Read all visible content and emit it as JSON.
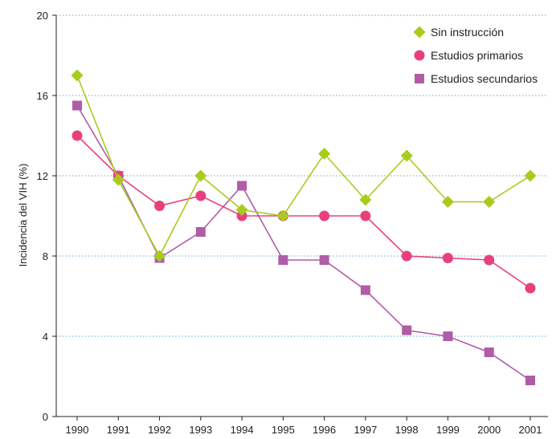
{
  "chart_data": {
    "type": "line",
    "x": [
      "1990",
      "1991",
      "1992",
      "1993",
      "1994",
      "1995",
      "1996",
      "1997",
      "1998",
      "1999",
      "2000",
      "2001"
    ],
    "ylabel": "Incidencia del VIH (%)",
    "ylim": [
      0,
      20
    ],
    "yticks": [
      "0",
      "4",
      "8",
      "12",
      "16",
      "20"
    ],
    "grid": "horizontal dotted",
    "legend_position": "top-right",
    "series": [
      {
        "name": "Sin instrucción",
        "color": "#a8cc1c",
        "marker": "diamond",
        "values": [
          17.0,
          11.8,
          8.0,
          12.0,
          10.3,
          10.0,
          13.1,
          10.8,
          13.0,
          10.7,
          10.7,
          12.0
        ]
      },
      {
        "name": "Estudios primarios",
        "color": "#e8407e",
        "marker": "circle",
        "values": [
          14.0,
          12.0,
          10.5,
          11.0,
          10.0,
          10.0,
          10.0,
          10.0,
          8.0,
          7.9,
          7.8,
          6.4
        ]
      },
      {
        "name": "Estudios secundarios",
        "color": "#b05ca6",
        "marker": "square",
        "values": [
          15.5,
          12.0,
          7.9,
          9.2,
          11.5,
          7.8,
          7.8,
          6.3,
          4.3,
          4.0,
          3.2,
          1.8
        ]
      }
    ]
  }
}
